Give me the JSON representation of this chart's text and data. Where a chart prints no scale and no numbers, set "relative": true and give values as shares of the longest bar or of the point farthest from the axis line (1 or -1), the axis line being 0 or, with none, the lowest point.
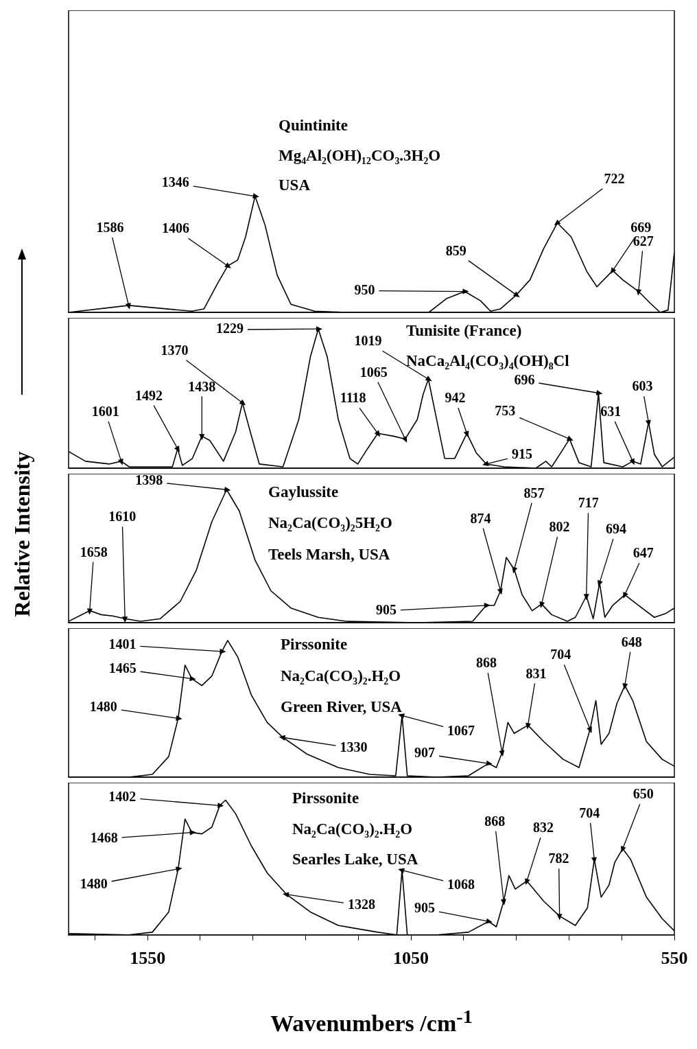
{
  "chart_data": [
    {
      "type": "line",
      "relative": true,
      "xlim": [
        1700,
        550
      ],
      "tick_labels": false,
      "x": [
        1700,
        1586,
        1466,
        1443,
        1417,
        1398,
        1379,
        1364,
        1346,
        1327,
        1304,
        1278,
        1233,
        1173,
        1076,
        1016,
        982,
        948,
        918,
        899,
        880,
        850,
        824,
        798,
        772,
        746,
        716,
        697,
        667,
        648,
        618,
        596,
        577,
        562,
        550
      ],
      "series": [
        {
          "color": "#000000",
          "values": [
            0,
            0.06,
            0.01,
            0.03,
            0.25,
            0.4,
            0.45,
            0.65,
            1,
            0.75,
            0.32,
            0.07,
            0.01,
            0,
            0,
            0,
            0.12,
            0.18,
            0.1,
            0.01,
            0.03,
            0.15,
            0.28,
            0.55,
            0.77,
            0.65,
            0.35,
            0.22,
            0.36,
            0.28,
            0.18,
            0.08,
            0,
            0.02,
            0.52
          ]
        }
      ],
      "annotations": [
        "Quintinite",
        "Mg₄Al₂(OH)₁₂CO₃.3H₂O",
        "USA",
        {
          "text": "1586",
          "x": 1586,
          "y": 0.06
        },
        {
          "text": "1406",
          "x": 1398,
          "y": 0.4
        },
        {
          "text": "1346",
          "x": 1346,
          "y": 1
        },
        {
          "text": "950",
          "x": 948,
          "y": 0.18
        },
        {
          "text": "859",
          "x": 850,
          "y": 0.15
        },
        {
          "text": "722",
          "x": 772,
          "y": 0.77
        },
        {
          "text": "669",
          "x": 667,
          "y": 0.36
        },
        {
          "text": "627",
          "x": 618,
          "y": 0.18
        }
      ]
    },
    {
      "type": "line",
      "relative": true,
      "xlim": [
        1700,
        550
      ],
      "tick_labels": false,
      "x": [
        1700,
        1668,
        1623,
        1600,
        1585,
        1503,
        1493,
        1484,
        1465,
        1447,
        1432,
        1406,
        1383,
        1370,
        1355,
        1338,
        1293,
        1263,
        1241,
        1226,
        1209,
        1188,
        1166,
        1151,
        1136,
        1113,
        1083,
        1061,
        1038,
        1027,
        1017,
        1004,
        986,
        967,
        944,
        926,
        907,
        873,
        813,
        794,
        783,
        764,
        749,
        731,
        708,
        694,
        684,
        648,
        629,
        614,
        599,
        588,
        573,
        550
      ],
      "series": [
        {
          "color": "#000000",
          "values": [
            0.12,
            0.05,
            0.03,
            0.05,
            0.01,
            0.01,
            0.14,
            0.02,
            0.07,
            0.23,
            0.2,
            0.05,
            0.26,
            0.47,
            0.26,
            0.03,
            0.01,
            0.35,
            0.8,
            1,
            0.8,
            0.35,
            0.07,
            0.03,
            0.12,
            0.25,
            0.23,
            0.21,
            0.35,
            0.53,
            0.64,
            0.4,
            0.07,
            0.07,
            0.25,
            0.11,
            0.03,
            0.01,
            0,
            0.05,
            0.01,
            0.12,
            0.21,
            0.04,
            0.01,
            0.54,
            0.04,
            0.01,
            0.05,
            0.03,
            0.33,
            0.1,
            0.01,
            0.08
          ]
        }
      ],
      "annotations": [
        "Tunisite (France)",
        "NaCa₂Al₄(CO₃)₄(OH)₈Cl",
        {
          "text": "1601",
          "x": 1600,
          "y": 0.05
        },
        {
          "text": "1492",
          "x": 1493,
          "y": 0.14
        },
        {
          "text": "1438",
          "x": 1447,
          "y": 0.23
        },
        {
          "text": "1370",
          "x": 1370,
          "y": 0.47
        },
        {
          "text": "1229",
          "x": 1226,
          "y": 1
        },
        {
          "text": "1118",
          "x": 1113,
          "y": 0.25
        },
        {
          "text": "1065",
          "x": 1061,
          "y": 0.21
        },
        {
          "text": "1019",
          "x": 1017,
          "y": 0.64
        },
        {
          "text": "942",
          "x": 944,
          "y": 0.25
        },
        {
          "text": "915",
          "x": 907,
          "y": 0.03
        },
        {
          "text": "753",
          "x": 749,
          "y": 0.21
        },
        {
          "text": "696",
          "x": 694,
          "y": 0.54
        },
        {
          "text": "631",
          "x": 629,
          "y": 0.05
        },
        {
          "text": "603",
          "x": 599,
          "y": 0.33
        }
      ]
    },
    {
      "type": "line",
      "relative": true,
      "xlim": [
        1700,
        550
      ],
      "tick_labels": false,
      "ylabel": "Relative Intensity",
      "x": [
        1700,
        1660,
        1638,
        1616,
        1593,
        1563,
        1526,
        1488,
        1458,
        1428,
        1400,
        1376,
        1346,
        1316,
        1278,
        1226,
        1173,
        1038,
        933,
        907,
        892,
        880,
        869,
        854,
        839,
        820,
        802,
        783,
        753,
        738,
        717,
        704,
        692,
        682,
        667,
        644,
        618,
        588,
        566,
        550
      ],
      "series": [
        {
          "color": "#000000",
          "values": [
            0.01,
            0.09,
            0.06,
            0.05,
            0.03,
            0.01,
            0.03,
            0.16,
            0.39,
            0.76,
            1,
            0.84,
            0.47,
            0.24,
            0.11,
            0.04,
            0.01,
            0,
            0.01,
            0.13,
            0.13,
            0.24,
            0.49,
            0.4,
            0.21,
            0.09,
            0.14,
            0.06,
            0.01,
            0.04,
            0.2,
            0.03,
            0.3,
            0.04,
            0.13,
            0.21,
            0.13,
            0.04,
            0.07,
            0.11
          ]
        }
      ],
      "annotations": [
        "Gaylussite",
        "Na₂Ca(CO₃)₂5H₂O",
        "Teels Marsh, USA",
        {
          "text": "1658",
          "x": 1660,
          "y": 0.09
        },
        {
          "text": "1610",
          "x": 1593,
          "y": 0.03
        },
        {
          "text": "1398",
          "x": 1400,
          "y": 1
        },
        {
          "text": "905",
          "x": 907,
          "y": 0.13
        },
        {
          "text": "874",
          "x": 880,
          "y": 0.24
        },
        {
          "text": "857",
          "x": 854,
          "y": 0.4
        },
        {
          "text": "802",
          "x": 802,
          "y": 0.14
        },
        {
          "text": "717",
          "x": 717,
          "y": 0.2
        },
        {
          "text": "694",
          "x": 692,
          "y": 0.3
        },
        {
          "text": "647",
          "x": 644,
          "y": 0.21
        }
      ]
    },
    {
      "type": "line",
      "relative": true,
      "xlim": [
        1700,
        550
      ],
      "tick_labels": false,
      "x": [
        1700,
        1586,
        1541,
        1510,
        1492,
        1479,
        1466,
        1447,
        1428,
        1409,
        1398,
        1379,
        1353,
        1323,
        1293,
        1248,
        1188,
        1128,
        1079,
        1067,
        1057,
        1001,
        941,
        903,
        888,
        877,
        866,
        854,
        828,
        798,
        761,
        731,
        710,
        699,
        689,
        674,
        659,
        644,
        629,
        603,
        573,
        550
      ],
      "series": [
        {
          "color": "#000000",
          "values": [
            0,
            0,
            0.02,
            0.15,
            0.43,
            0.82,
            0.72,
            0.67,
            0.74,
            0.92,
            1,
            0.88,
            0.6,
            0.4,
            0.29,
            0.17,
            0.07,
            0.02,
            0.01,
            0.45,
            0.01,
            0,
            0.01,
            0.1,
            0.07,
            0.18,
            0.4,
            0.32,
            0.38,
            0.26,
            0.13,
            0.07,
            0.35,
            0.56,
            0.24,
            0.32,
            0.54,
            0.67,
            0.56,
            0.26,
            0.13,
            0.08
          ]
        }
      ],
      "annotations": [
        "Pirssonite",
        "Na₂Ca(CO₃)₂.H₂O",
        "Green River, USA",
        {
          "text": "1401",
          "x": 1409,
          "y": 0.92
        },
        {
          "text": "1465",
          "x": 1466,
          "y": 0.72
        },
        {
          "text": "1480",
          "x": 1492,
          "y": 0.43
        },
        {
          "text": "1330",
          "x": 1293,
          "y": 0.29
        },
        {
          "text": "1067",
          "x": 1067,
          "y": 0.45
        },
        {
          "text": "907",
          "x": 903,
          "y": 0.1
        },
        {
          "text": "868",
          "x": 877,
          "y": 0.18
        },
        {
          "text": "831",
          "x": 828,
          "y": 0.38
        },
        {
          "text": "704",
          "x": 710,
          "y": 0.35
        },
        {
          "text": "648",
          "x": 644,
          "y": 0.67
        }
      ]
    },
    {
      "type": "line",
      "relative": true,
      "xlim": [
        1700,
        550
      ],
      "xticks": [
        {
          "value": 1650,
          "label": null
        },
        1550,
        {
          "value": 1450,
          "label": null
        },
        {
          "value": 1350,
          "label": null
        },
        {
          "value": 1250,
          "label": null
        },
        {
          "value": 1150,
          "label": null
        },
        1050,
        {
          "value": 950,
          "label": null
        },
        {
          "value": 850,
          "label": null
        },
        {
          "value": 750,
          "label": null
        },
        {
          "value": 650,
          "label": null
        },
        550
      ],
      "tick_labels": "x",
      "xlabel": "Wavenumbers /cm$^{-1}$",
      "x": [
        1700,
        1586,
        1541,
        1510,
        1492,
        1479,
        1466,
        1447,
        1428,
        1413,
        1402,
        1383,
        1353,
        1323,
        1286,
        1241,
        1188,
        1113,
        1077,
        1067,
        1057,
        1001,
        941,
        903,
        888,
        874,
        864,
        852,
        830,
        798,
        768,
        738,
        715,
        702,
        689,
        674,
        663,
        648,
        633,
        603,
        573,
        550
      ],
      "series": [
        {
          "color": "#000000",
          "values": [
            0.01,
            0,
            0.02,
            0.17,
            0.49,
            0.86,
            0.76,
            0.75,
            0.8,
            0.96,
            1,
            0.9,
            0.66,
            0.46,
            0.3,
            0.17,
            0.07,
            0.02,
            0,
            0.48,
            0,
            0,
            0.02,
            0.1,
            0.06,
            0.25,
            0.44,
            0.34,
            0.4,
            0.25,
            0.14,
            0.07,
            0.2,
            0.56,
            0.28,
            0.37,
            0.54,
            0.64,
            0.56,
            0.28,
            0.12,
            0.03
          ]
        }
      ],
      "annotations": [
        "Pirssonite",
        "Na₂Ca(CO₃)₂.H₂O",
        "Searles Lake, USA",
        {
          "text": "1402",
          "x": 1413,
          "y": 0.96
        },
        {
          "text": "1468",
          "x": 1466,
          "y": 0.76
        },
        {
          "text": "1480",
          "x": 1492,
          "y": 0.49
        },
        {
          "text": "1328",
          "x": 1286,
          "y": 0.3
        },
        {
          "text": "1068",
          "x": 1067,
          "y": 0.48
        },
        {
          "text": "905",
          "x": 903,
          "y": 0.1
        },
        {
          "text": "868",
          "x": 874,
          "y": 0.25
        },
        {
          "text": "832",
          "x": 830,
          "y": 0.4
        },
        {
          "text": "782",
          "x": 768,
          "y": 0.14
        },
        {
          "text": "704",
          "x": 702,
          "y": 0.56
        },
        {
          "text": "650",
          "x": 648,
          "y": 0.64
        }
      ]
    }
  ]
}
